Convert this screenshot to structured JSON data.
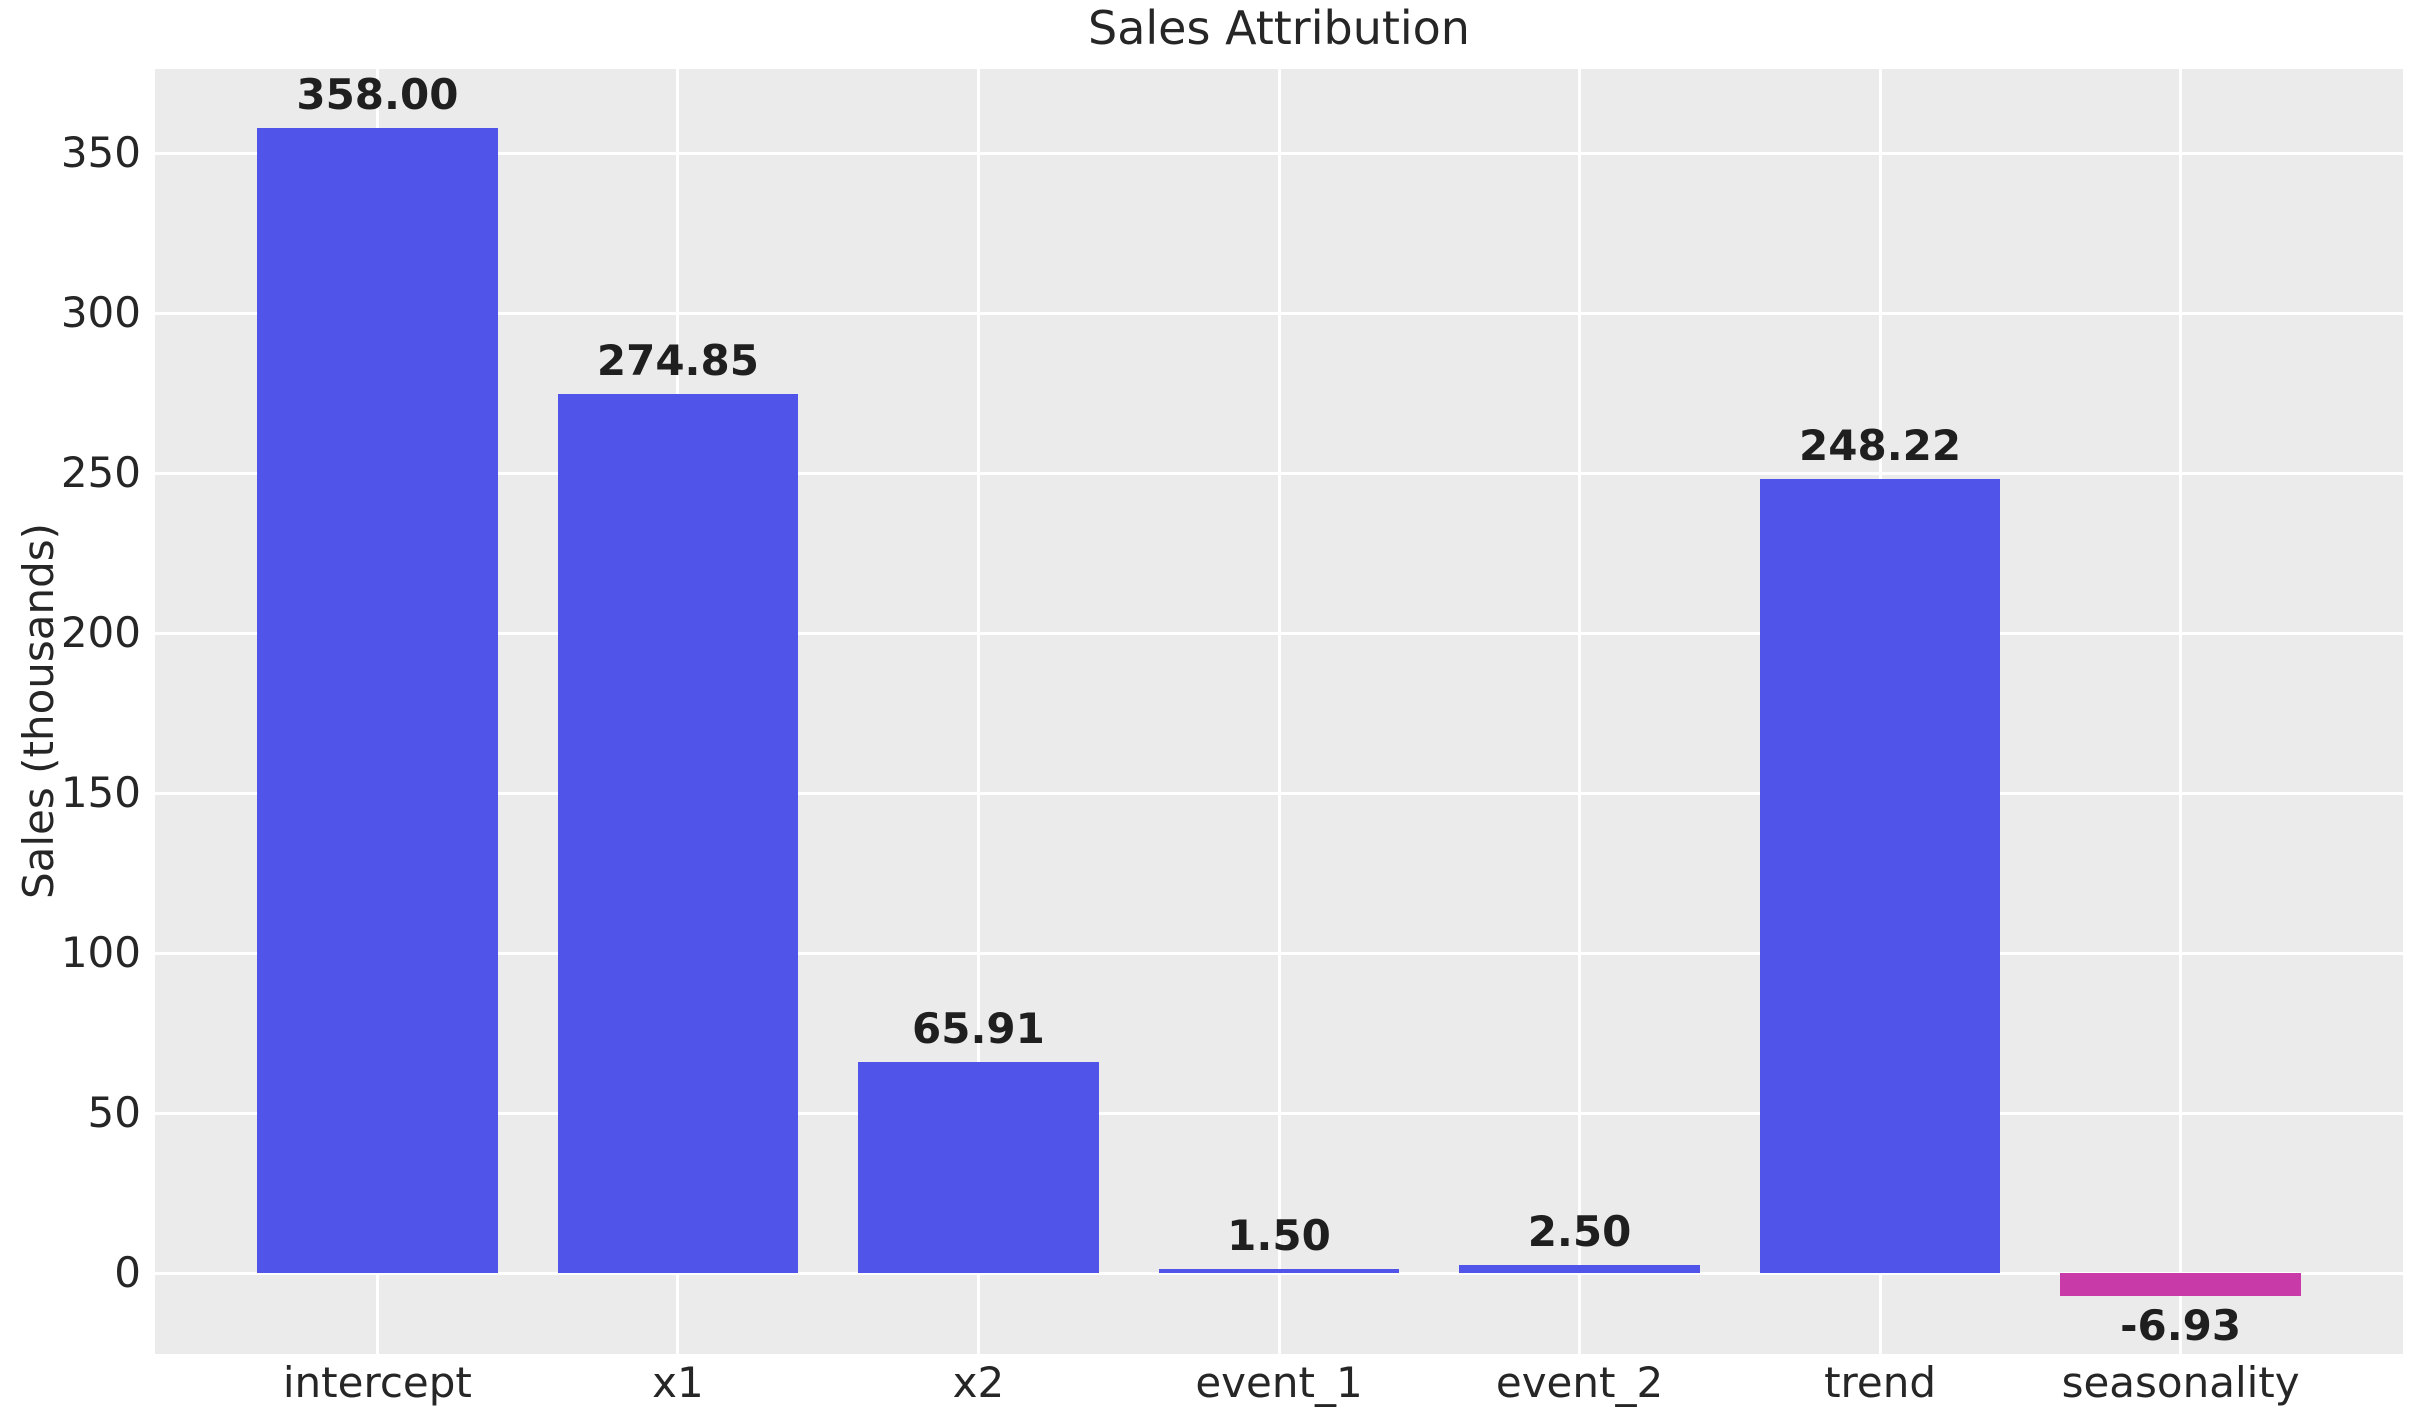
{
  "chart_data": {
    "type": "bar",
    "title": "Sales Attribution",
    "ylabel": "Sales (thousands)",
    "xlabel": "",
    "categories": [
      "intercept",
      "x1",
      "x2",
      "event_1",
      "event_2",
      "trend",
      "seasonality"
    ],
    "values": [
      358.0,
      274.85,
      65.91,
      1.5,
      2.5,
      248.22,
      -6.93
    ],
    "value_labels": [
      "358.00",
      "274.85",
      "65.91",
      "1.50",
      "2.50",
      "248.22",
      "-6.93"
    ],
    "yticks": [
      0,
      50,
      100,
      150,
      200,
      250,
      300,
      350
    ],
    "ylim": [
      -25.2,
      376.3
    ],
    "xlim": [
      -0.74,
      6.74
    ],
    "bar_width": 0.8,
    "grid": true,
    "legend_position": "none",
    "colors": {
      "positive_bar": "#5154e8",
      "negative_bar": "#c73aa8",
      "plot_bg": "#ebebeb",
      "grid": "#ffffff",
      "tick_text": "#262626",
      "value_text": "#1f1f1f",
      "figure_bg": "#ffffff"
    }
  }
}
